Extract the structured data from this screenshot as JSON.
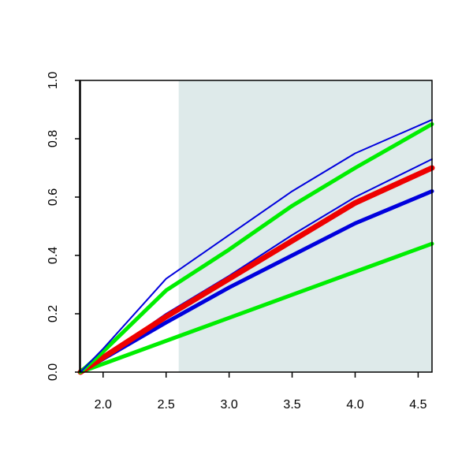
{
  "chart_data": {
    "type": "line",
    "x": [
      1.82,
      2.0,
      2.5,
      3.0,
      3.5,
      4.0,
      4.61
    ],
    "series": [
      {
        "color": "#00ee00",
        "width": 5,
        "values": [
          0,
          0.028,
          0.107,
          0.186,
          0.265,
          0.344,
          0.44
        ]
      },
      {
        "color": "#0000dd",
        "width": 5,
        "values": [
          0,
          0.045,
          0.17,
          0.29,
          0.4,
          0.51,
          0.62
        ]
      },
      {
        "color": "#0000dd",
        "width": 2,
        "values": [
          0,
          0.05,
          0.2,
          0.33,
          0.47,
          0.6,
          0.73
        ]
      },
      {
        "color": "#ee0000",
        "width": 7,
        "values": [
          0,
          0.05,
          0.19,
          0.32,
          0.45,
          0.58,
          0.7
        ]
      },
      {
        "color": "#00ee00",
        "width": 5,
        "values": [
          0,
          0.07,
          0.28,
          0.42,
          0.57,
          0.7,
          0.85
        ]
      },
      {
        "color": "#0000dd",
        "width": 2,
        "values": [
          0,
          0.08,
          0.32,
          0.47,
          0.62,
          0.75,
          0.865
        ]
      }
    ],
    "shade_xmin": 2.6,
    "shade_color": "#deeaea",
    "xlim": [
      1.82,
      4.61
    ],
    "ylim": [
      0,
      1.0
    ],
    "xticks": [
      {
        "value": 2,
        "label": "2.0"
      },
      2.5,
      {
        "value": 3,
        "label": "3.0"
      },
      3.5,
      {
        "value": 4,
        "label": "4.0"
      },
      4.5
    ],
    "yticks": [
      {
        "value": 0,
        "label": "0.0"
      },
      0.2,
      0.4,
      0.6,
      0.8,
      {
        "value": 1,
        "label": "1.0"
      }
    ]
  }
}
